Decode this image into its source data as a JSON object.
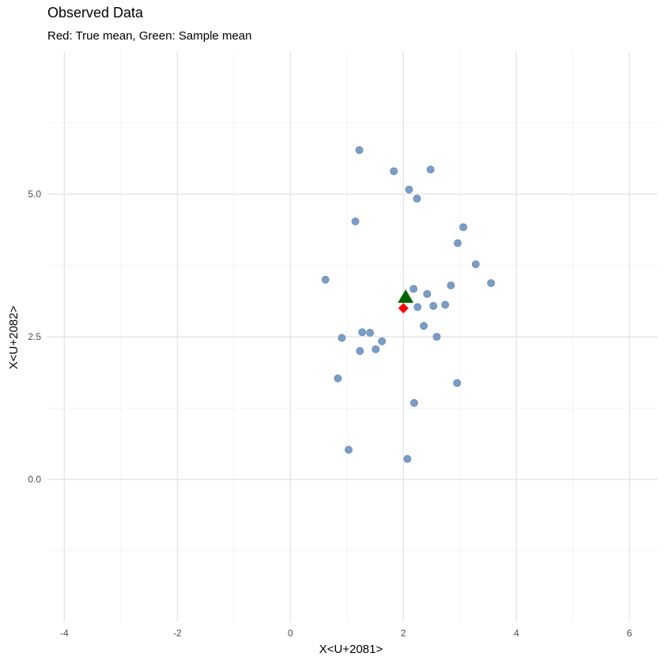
{
  "chart_data": {
    "type": "scatter",
    "title": "Observed Data",
    "subtitle": "Red: True mean, Green: Sample mean",
    "xlabel": "X<U+2081>",
    "ylabel": "X<U+2082>",
    "xlim": [
      -4.3,
      6.5
    ],
    "ylim": [
      -2.5,
      7.5
    ],
    "x_ticks": [
      -4,
      -2,
      0,
      2,
      4,
      6
    ],
    "x_tick_labels": [
      "-4",
      "-2",
      "0",
      "2",
      "4",
      "6"
    ],
    "y_ticks": [
      0,
      2.5,
      5
    ],
    "y_tick_labels": [
      "0.0",
      "2.5",
      "5.0"
    ],
    "grid": true,
    "series": [
      {
        "name": "observations",
        "color": "#6b92bf",
        "marker": "circle",
        "points": [
          [
            1.22,
            5.77
          ],
          [
            1.83,
            5.4
          ],
          [
            2.48,
            5.43
          ],
          [
            2.1,
            5.08
          ],
          [
            2.24,
            4.92
          ],
          [
            1.15,
            4.52
          ],
          [
            3.06,
            4.42
          ],
          [
            2.96,
            4.14
          ],
          [
            3.28,
            3.77
          ],
          [
            0.62,
            3.5
          ],
          [
            3.55,
            3.44
          ],
          [
            2.84,
            3.4
          ],
          [
            2.18,
            3.34
          ],
          [
            2.42,
            3.25
          ],
          [
            2.74,
            3.06
          ],
          [
            2.53,
            3.04
          ],
          [
            2.25,
            3.02
          ],
          [
            2.36,
            2.69
          ],
          [
            1.27,
            2.58
          ],
          [
            1.41,
            2.57
          ],
          [
            2.59,
            2.5
          ],
          [
            0.91,
            2.48
          ],
          [
            1.62,
            2.42
          ],
          [
            1.51,
            2.28
          ],
          [
            1.23,
            2.25
          ],
          [
            0.84,
            1.77
          ],
          [
            2.95,
            1.69
          ],
          [
            2.19,
            1.34
          ],
          [
            1.03,
            0.52
          ],
          [
            2.07,
            0.36
          ]
        ]
      },
      {
        "name": "true mean",
        "color": "#ff0000",
        "marker": "diamond",
        "points": [
          [
            2.0,
            3.0
          ]
        ]
      },
      {
        "name": "sample mean",
        "color": "#006400",
        "marker": "triangle",
        "points": [
          [
            2.04,
            3.19
          ]
        ]
      }
    ]
  }
}
